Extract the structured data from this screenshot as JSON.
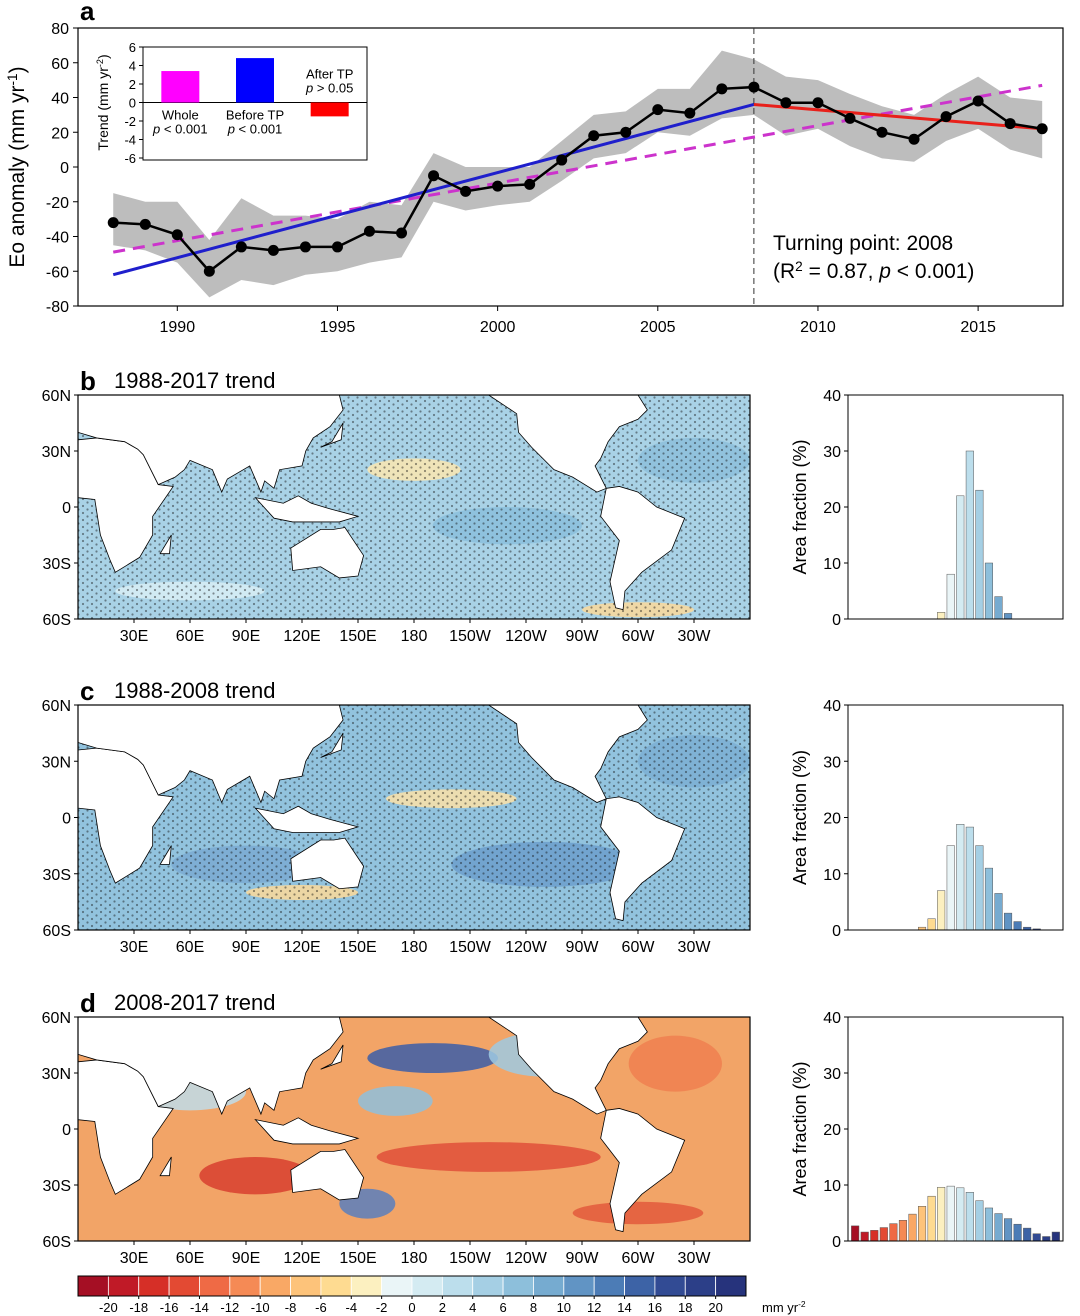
{
  "chart_data": [
    {
      "type": "line",
      "letter": "a",
      "x": [
        1988,
        1989,
        1990,
        1991,
        1992,
        1993,
        1994,
        1995,
        1996,
        1997,
        1998,
        1999,
        2000,
        2001,
        2002,
        2003,
        2004,
        2005,
        2006,
        2007,
        2008,
        2009,
        2010,
        2011,
        2012,
        2013,
        2014,
        2015,
        2016,
        2017
      ],
      "values": [
        -32,
        -33,
        -39,
        -60,
        -46,
        -48,
        -46,
        -46,
        -37,
        -38,
        -5,
        -14,
        -11,
        -10,
        4,
        18,
        20,
        33,
        31,
        45,
        46,
        37,
        37,
        28,
        20,
        16,
        29,
        38,
        25,
        22
      ],
      "band_low": [
        -45,
        -48,
        -55,
        -75,
        -65,
        -68,
        -62,
        -60,
        -55,
        -52,
        -20,
        -25,
        -22,
        -20,
        -8,
        5,
        8,
        20,
        18,
        28,
        30,
        18,
        22,
        12,
        5,
        3,
        15,
        22,
        10,
        5
      ],
      "band_high": [
        -15,
        -20,
        -20,
        -42,
        -18,
        -28,
        -28,
        -30,
        -20,
        -22,
        8,
        0,
        0,
        0,
        15,
        30,
        32,
        45,
        45,
        67,
        62,
        52,
        50,
        42,
        35,
        30,
        42,
        52,
        40,
        38
      ],
      "color": "#000000",
      "band_color": "#bdbdbd",
      "xlim": [
        1986.9,
        2017.65
      ],
      "ylim": [
        -80,
        80
      ],
      "xticks": [
        1990,
        1995,
        2000,
        2005,
        2010,
        2015
      ],
      "yticks": [
        -80,
        -60,
        -40,
        -20,
        0,
        20,
        40,
        60,
        80
      ],
      "ylabel": [
        {
          "text": "Eo anomaly (mm yr"
        },
        {
          "text": "-1",
          "sup": true
        },
        {
          "text": ")"
        }
      ],
      "turning_point": 2008,
      "trend_lines": [
        {
          "x": [
            1988,
            2017
          ],
          "values": [
            -49,
            47
          ],
          "color": "#cc33cc",
          "dashed": true
        },
        {
          "x": [
            1988,
            2008
          ],
          "values": [
            -62,
            36
          ],
          "color": "#1f1fcc",
          "dashed": false
        },
        {
          "x": [
            2008,
            2017
          ],
          "values": [
            36,
            22
          ],
          "color": "#e8201a",
          "dashed": false
        }
      ],
      "annotation": "Turning point: 2008",
      "annotation2": [
        {
          "text": "(R"
        },
        {
          "text": "2",
          "sup": true
        },
        {
          "text": " = 0.87, "
        },
        {
          "text": "p",
          "italic": true
        },
        {
          "text": " < 0.001)"
        }
      ]
    },
    {
      "type": "bar",
      "categories": [
        "Whole",
        "Before TP",
        "After TP"
      ],
      "values": [
        3.4,
        4.8,
        -1.5
      ],
      "colors": [
        "#ff00ff",
        "#0000ff",
        "#ff0000"
      ],
      "p_labels": [
        [
          {
            "text": "p",
            "italic": true
          },
          {
            "text": " < 0.001"
          }
        ],
        [
          {
            "text": "p",
            "italic": true
          },
          {
            "text": " < 0.001"
          }
        ],
        [
          {
            "text": "p",
            "italic": true
          },
          {
            "text": " > 0.05"
          }
        ]
      ],
      "ylim": [
        -6,
        6
      ],
      "yticks": [
        -6,
        -4,
        -2,
        0,
        2,
        4,
        6
      ],
      "ylabel": [
        {
          "text": "Trend (mm yr"
        },
        {
          "text": "-2",
          "sup": true
        },
        {
          "text": ")"
        }
      ]
    },
    {
      "type": "map",
      "letter": "b",
      "title": "1988-2017 trend",
      "stipple": true,
      "xlim": [
        0,
        360
      ],
      "ylim": [
        -60,
        60
      ],
      "lat_ticks": [
        {
          "value": 60,
          "label": "60N"
        },
        {
          "value": 30,
          "label": "30N"
        },
        0,
        {
          "value": -30,
          "label": "30S"
        },
        {
          "value": -60,
          "label": "60S"
        }
      ],
      "lon_ticks": [
        {
          "value": 30,
          "label": "30E"
        },
        {
          "value": 60,
          "label": "60E"
        },
        {
          "value": 90,
          "label": "90E"
        },
        {
          "value": 120,
          "label": "120E"
        },
        {
          "value": 150,
          "label": "150E"
        },
        180,
        {
          "value": 210,
          "label": "150W"
        },
        {
          "value": 240,
          "label": "120W"
        },
        {
          "value": 270,
          "label": "90W"
        },
        {
          "value": 300,
          "label": "60W"
        },
        {
          "value": 330,
          "label": "30W"
        }
      ]
    },
    {
      "type": "histogram",
      "bins": [
        -22,
        -20,
        -18,
        -16,
        -14,
        -12,
        -10,
        -8,
        -6,
        -4,
        -2,
        0,
        2,
        4,
        6,
        8,
        10,
        12,
        14,
        16,
        18,
        20,
        22
      ],
      "values": [
        0,
        0,
        0,
        0,
        0,
        0,
        0,
        0,
        0,
        1.2,
        8,
        22,
        30,
        23,
        10,
        4,
        1,
        0,
        0,
        0,
        0,
        0
      ],
      "xlim": [
        -22.5,
        22.5
      ],
      "ylim": [
        0,
        40
      ],
      "yticks": [
        0,
        10,
        20,
        30,
        40
      ],
      "ylabel": "Area fraction (%)"
    },
    {
      "type": "map",
      "letter": "c",
      "title": "1988-2008 trend",
      "stipple": true,
      "xlim": [
        0,
        360
      ],
      "ylim": [
        -60,
        60
      ],
      "lat_ticks": [
        {
          "value": 60,
          "label": "60N"
        },
        {
          "value": 30,
          "label": "30N"
        },
        0,
        {
          "value": -30,
          "label": "30S"
        },
        {
          "value": -60,
          "label": "60S"
        }
      ],
      "lon_ticks": [
        {
          "value": 30,
          "label": "30E"
        },
        {
          "value": 60,
          "label": "60E"
        },
        {
          "value": 90,
          "label": "90E"
        },
        {
          "value": 120,
          "label": "120E"
        },
        {
          "value": 150,
          "label": "150E"
        },
        180,
        {
          "value": 210,
          "label": "150W"
        },
        {
          "value": 240,
          "label": "120W"
        },
        {
          "value": 270,
          "label": "90W"
        },
        {
          "value": 300,
          "label": "60W"
        },
        {
          "value": 330,
          "label": "30W"
        }
      ]
    },
    {
      "type": "histogram",
      "bins": [
        -22,
        -20,
        -18,
        -16,
        -14,
        -12,
        -10,
        -8,
        -6,
        -4,
        -2,
        0,
        2,
        4,
        6,
        8,
        10,
        12,
        14,
        16,
        18,
        20,
        22
      ],
      "values": [
        0,
        0,
        0,
        0,
        0,
        0,
        0,
        0.5,
        2,
        7,
        15,
        18.8,
        18.3,
        15,
        11,
        6.5,
        3,
        1.5,
        0.5,
        0.2,
        0,
        0
      ],
      "xlim": [
        -22.5,
        22.5
      ],
      "ylim": [
        0,
        40
      ],
      "yticks": [
        0,
        10,
        20,
        30,
        40
      ],
      "ylabel": "Area fraction (%)"
    },
    {
      "type": "map",
      "letter": "d",
      "title": "2008-2017 trend",
      "stipple": false,
      "xlim": [
        0,
        360
      ],
      "ylim": [
        -60,
        60
      ],
      "lat_ticks": [
        {
          "value": 60,
          "label": "60N"
        },
        {
          "value": 30,
          "label": "30N"
        },
        0,
        {
          "value": -30,
          "label": "30S"
        },
        {
          "value": -60,
          "label": "60S"
        }
      ],
      "lon_ticks": [
        {
          "value": 30,
          "label": "30E"
        },
        {
          "value": 60,
          "label": "60E"
        },
        {
          "value": 90,
          "label": "90E"
        },
        {
          "value": 120,
          "label": "120E"
        },
        {
          "value": 150,
          "label": "150E"
        },
        180,
        {
          "value": 210,
          "label": "150W"
        },
        {
          "value": 240,
          "label": "120W"
        },
        {
          "value": 270,
          "label": "90W"
        },
        {
          "value": 300,
          "label": "60W"
        },
        {
          "value": 330,
          "label": "30W"
        }
      ]
    },
    {
      "type": "histogram",
      "bins": [
        -22,
        -20,
        -18,
        -16,
        -14,
        -12,
        -10,
        -8,
        -6,
        -4,
        -2,
        0,
        2,
        4,
        6,
        8,
        10,
        12,
        14,
        16,
        18,
        20,
        22
      ],
      "values": [
        2.7,
        1.6,
        1.9,
        2.4,
        3.1,
        3.7,
        4.8,
        6.2,
        8,
        9.6,
        9.8,
        9.5,
        8.7,
        7.2,
        5.9,
        4.9,
        4,
        3,
        2.3,
        1.3,
        0.8,
        1.6
      ],
      "xlim": [
        -22.5,
        22.5
      ],
      "ylim": [
        0,
        40
      ],
      "yticks": [
        0,
        10,
        20,
        30,
        40
      ],
      "ylabel": "Area fraction (%)"
    },
    {
      "type": "colorbar",
      "xlim": [
        -22,
        22
      ],
      "colors": [
        "#a50f24",
        "#c01a27",
        "#d62f27",
        "#e34a33",
        "#ef6a45",
        "#f58a55",
        "#f9a865",
        "#fdc37a",
        "#fedb91",
        "#fcf0c0",
        "#eaf5f7",
        "#d4ebf2",
        "#bcdeec",
        "#a5cfe4",
        "#8dbfdb",
        "#76abd0",
        "#6194c4",
        "#4c7cb6",
        "#3d63a6",
        "#324b94",
        "#2c3f88",
        "#26337c"
      ],
      "ticks": [
        -20,
        -18,
        -16,
        -14,
        -12,
        -10,
        -8,
        -6,
        -4,
        -2,
        0,
        2,
        4,
        6,
        8,
        10,
        12,
        14,
        16,
        18,
        20
      ],
      "unit": [
        {
          "text": "mm yr"
        },
        {
          "text": "-2",
          "sup": true
        }
      ]
    }
  ]
}
